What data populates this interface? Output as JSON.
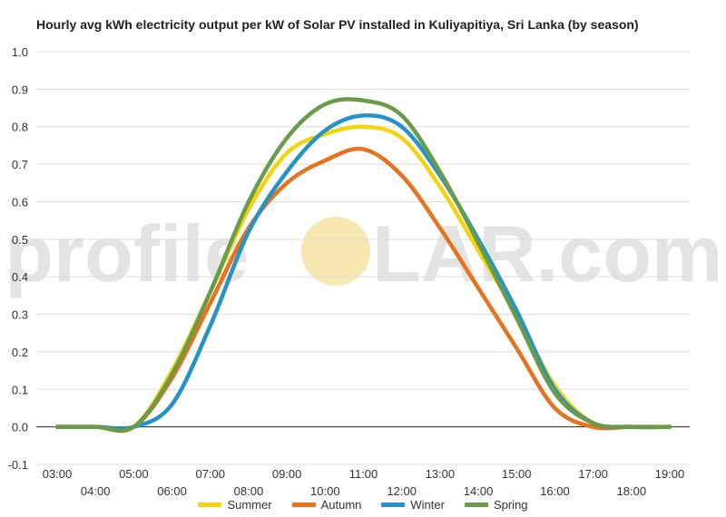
{
  "title": "Hourly avg kWh electricity output per kW of Solar PV installed in Kuliyapitiya, Sri Lanka (by season)",
  "watermark": {
    "left": "profile",
    "right": "LAR.com",
    "sun_color": "#f7e7b0"
  },
  "colors": {
    "Summer": "#f5d40f",
    "Autumn": "#e8731e",
    "Winter": "#2593c8",
    "Spring": "#6a9b48"
  },
  "chart_data": {
    "type": "line",
    "x": [
      "03:00",
      "04:00",
      "05:00",
      "06:00",
      "07:00",
      "08:00",
      "09:00",
      "10:00",
      "11:00",
      "12:00",
      "13:00",
      "14:00",
      "15:00",
      "16:00",
      "17:00",
      "18:00",
      "19:00"
    ],
    "x_ticks_upper": [
      "03:00",
      "05:00",
      "07:00",
      "09:00",
      "11:00",
      "13:00",
      "15:00",
      "17:00",
      "19:00"
    ],
    "x_ticks_lower": [
      "04:00",
      "06:00",
      "08:00",
      "10:00",
      "12:00",
      "14:00",
      "16:00",
      "18:00"
    ],
    "y_ticks": [
      "1.0",
      "0.9",
      "0.8",
      "0.7",
      "0.6",
      "0.5",
      "0.4",
      "0.3",
      "0.2",
      "0.1",
      "0.0",
      "-0.1"
    ],
    "ylim": [
      -0.1,
      1.0
    ],
    "series": [
      {
        "name": "Summer",
        "values": [
          0,
          0,
          0,
          0.15,
          0.36,
          0.58,
          0.73,
          0.78,
          0.8,
          0.77,
          0.64,
          0.47,
          0.3,
          0.11,
          0.01,
          0,
          0
        ]
      },
      {
        "name": "Autumn",
        "values": [
          0,
          0,
          0,
          0.13,
          0.33,
          0.53,
          0.65,
          0.71,
          0.74,
          0.67,
          0.53,
          0.37,
          0.21,
          0.05,
          0,
          0,
          0
        ]
      },
      {
        "name": "Winter",
        "values": [
          0,
          0,
          0,
          0.06,
          0.27,
          0.52,
          0.68,
          0.79,
          0.83,
          0.8,
          0.67,
          0.5,
          0.31,
          0.1,
          0.01,
          0,
          0
        ]
      },
      {
        "name": "Spring",
        "values": [
          0,
          0,
          0,
          0.14,
          0.36,
          0.6,
          0.77,
          0.86,
          0.87,
          0.83,
          0.68,
          0.49,
          0.29,
          0.09,
          0.01,
          0,
          0
        ]
      }
    ],
    "legend": [
      "Summer",
      "Autumn",
      "Winter",
      "Spring"
    ],
    "legend_position": "bottom",
    "grid": true
  }
}
